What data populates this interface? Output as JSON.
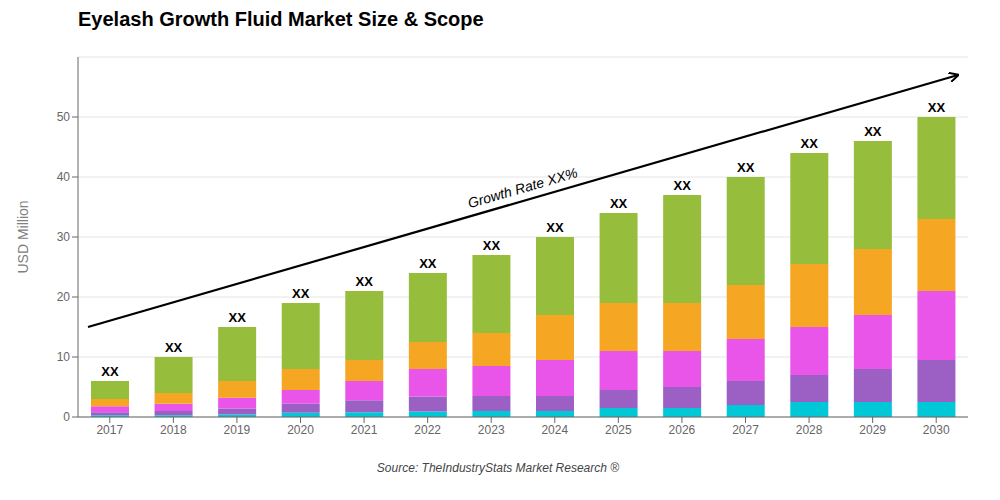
{
  "chart_data": {
    "type": "bar",
    "stacked": true,
    "title": "Eyelash Growth Fluid Market Size & Scope",
    "ylabel": "USD Million",
    "source": "Source: TheIndustryStats Market Research ®",
    "annotations": [
      "Growth Rate XX%"
    ],
    "categories": [
      "2017",
      "2018",
      "2019",
      "2020",
      "2021",
      "2022",
      "2023",
      "2024",
      "2025",
      "2026",
      "2027",
      "2028",
      "2029",
      "2030"
    ],
    "series": [
      {
        "color": "#00c8d7",
        "values": [
          0.3,
          0.3,
          0.4,
          0.7,
          0.8,
          0.9,
          1.0,
          1.0,
          1.5,
          1.5,
          2.0,
          2.5,
          2.5,
          2.5
        ]
      },
      {
        "color": "#9c5fc4",
        "values": [
          0.5,
          0.7,
          1.0,
          1.5,
          2.0,
          2.5,
          2.5,
          2.5,
          3.0,
          3.5,
          4.0,
          4.5,
          5.5,
          7.0
        ]
      },
      {
        "color": "#e855e8",
        "values": [
          1.0,
          1.2,
          1.8,
          2.3,
          3.2,
          4.6,
          5.0,
          6.0,
          6.5,
          6.0,
          7.0,
          8.0,
          9.0,
          11.5
        ]
      },
      {
        "color": "#f5a623",
        "values": [
          1.2,
          1.8,
          2.8,
          3.5,
          3.5,
          4.5,
          5.5,
          7.5,
          8.0,
          8.0,
          9.0,
          10.5,
          11.0,
          12.0
        ]
      },
      {
        "color": "#96be3c",
        "values": [
          3.0,
          6.0,
          9.0,
          11.0,
          11.5,
          11.5,
          13.0,
          13.0,
          15.0,
          18.0,
          18.0,
          18.5,
          18.0,
          17.0
        ]
      }
    ],
    "bar_labels": [
      "XX",
      "XX",
      "XX",
      "XX",
      "XX",
      "XX",
      "XX",
      "XX",
      "XX",
      "XX",
      "XX",
      "XX",
      "XX",
      "XX"
    ],
    "ylim": [
      0,
      60
    ],
    "yticks": [
      0,
      10,
      20,
      30,
      40,
      50
    ],
    "grid": true
  }
}
